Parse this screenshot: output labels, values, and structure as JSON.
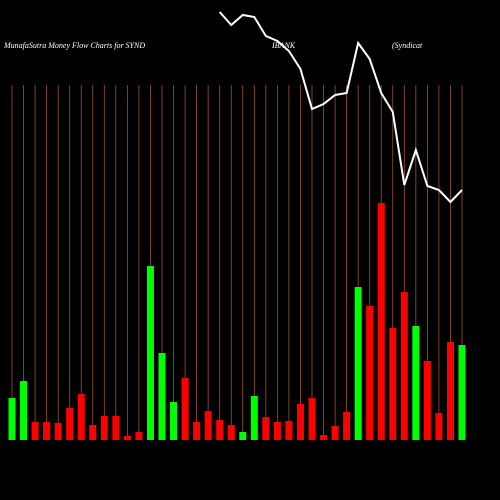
{
  "chart_data": {
    "type": "bar",
    "title_parts": [
      "MunafaSutra  Money Flow  Charts for SYND",
      "IBANK",
      "(Syndicat"
    ],
    "categories": [
      null,
      null,
      null,
      null,
      null,
      null,
      null,
      null,
      null,
      null,
      null,
      null,
      null,
      null,
      null,
      null,
      null,
      null,
      null,
      null,
      null,
      null,
      null,
      null,
      null,
      null,
      null,
      null,
      null,
      null,
      null,
      null,
      null,
      null,
      null,
      null,
      null,
      null,
      null,
      null
    ],
    "series": [
      {
        "type": "bar",
        "values": [
          42,
          59,
          18,
          18,
          17,
          32,
          46,
          15,
          24,
          24,
          4,
          8,
          174,
          87,
          38,
          62,
          18,
          29,
          20,
          15,
          8,
          44,
          23,
          18,
          19,
          36,
          42,
          5,
          14,
          28,
          153,
          134,
          237,
          112,
          148,
          114,
          79,
          27,
          98,
          95
        ],
        "colors": [
          "#00ff00",
          "#00ff00",
          "#ff0000",
          "#ff0000",
          "#ff0000",
          "#ff0000",
          "#ff0000",
          "#ff0000",
          "#ff0000",
          "#ff0000",
          "#ff0000",
          "#ff0000",
          "#00ff00",
          "#00ff00",
          "#00ff00",
          "#ff0000",
          "#ff0000",
          "#ff0000",
          "#ff0000",
          "#ff0000",
          "#00ff00",
          "#00ff00",
          "#ff0000",
          "#ff0000",
          "#ff0000",
          "#ff0000",
          "#ff0000",
          "#ff0000",
          "#ff0000",
          "#ff0000",
          "#00ff00",
          "#ff0000",
          "#ff0000",
          "#ff0000",
          "#ff0000",
          "#00ff00",
          "#ff0000",
          "#ff0000",
          "#ff0000",
          "#00ff00"
        ]
      },
      {
        "type": "line",
        "axis": "y2",
        "color": "#ffffff",
        "values": [
          null,
          null,
          null,
          null,
          null,
          null,
          null,
          null,
          null,
          null,
          null,
          null,
          null,
          null,
          null,
          null,
          null,
          null,
          488,
          475,
          485,
          483,
          464,
          459,
          449,
          431,
          391,
          396,
          405,
          407,
          457,
          441,
          407,
          388,
          315,
          350,
          314,
          310,
          298,
          310
        ]
      }
    ],
    "ylim": [
      0,
      440
    ],
    "y2lim": [
      0,
      500
    ],
    "grid_color": "#a0522d"
  }
}
